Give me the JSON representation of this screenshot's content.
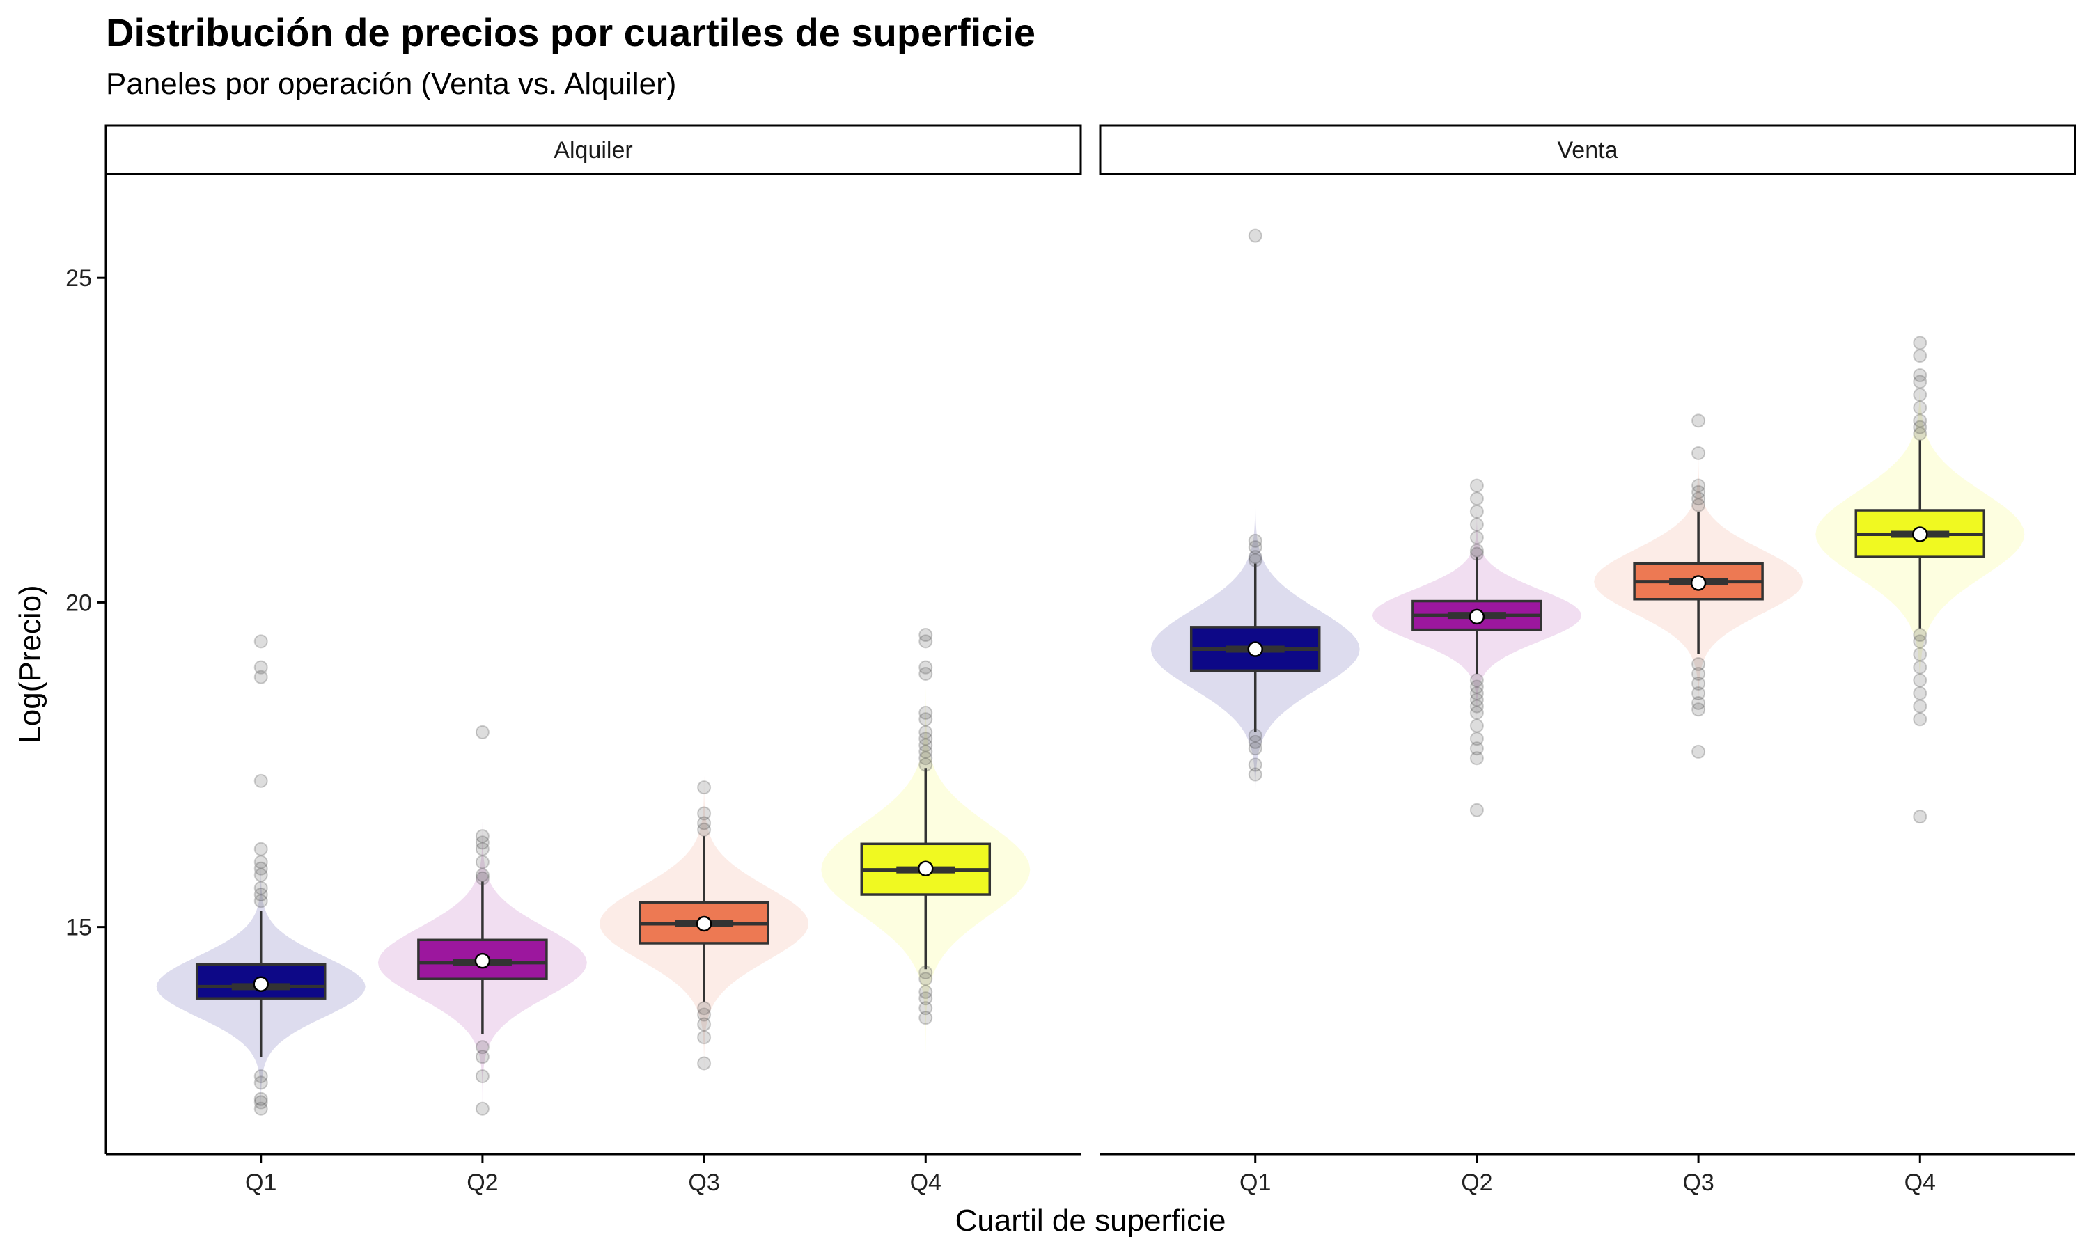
{
  "chart_data": {
    "type": "boxplot",
    "title": "Distribución de precios por cuartiles de superficie",
    "subtitle": "Paneles por operación (Venta vs. Alquiler)",
    "xlabel": "Cuartil de superficie",
    "ylabel": "Log(Precio)",
    "ylim": [
      11.5,
      26.6
    ],
    "yticks": [
      15,
      20,
      25
    ],
    "ytick_labels": [
      "15",
      "20",
      "25"
    ],
    "categories": [
      "Q1",
      "Q2",
      "Q3",
      "Q4"
    ],
    "colors": {
      "Q1": "#0d0887",
      "Q2": "#9c179e",
      "Q3": "#ed7953",
      "Q4": "#f0f921"
    },
    "grid": false,
    "legend": "none",
    "panels": [
      {
        "name": "Alquiler",
        "boxes": [
          {
            "category": "Q1",
            "q1": 13.9,
            "median": 14.08,
            "q3": 14.42,
            "whisker_low": 13.0,
            "whisker_high": 15.25,
            "mean": 14.12,
            "outliers": [
              12.2,
              12.3,
              12.35,
              12.6,
              12.7,
              15.4,
              15.5,
              15.6,
              15.8,
              15.9,
              16.0,
              16.2,
              17.25,
              18.85,
              19.0,
              19.4
            ]
          },
          {
            "category": "Q2",
            "q1": 14.2,
            "median": 14.45,
            "q3": 14.8,
            "whisker_low": 13.35,
            "whisker_high": 15.7,
            "mean": 14.48,
            "outliers": [
              12.2,
              12.7,
              13.0,
              13.15,
              15.75,
              15.8,
              16.0,
              16.2,
              16.3,
              16.4,
              18.0
            ]
          },
          {
            "category": "Q3",
            "q1": 14.75,
            "median": 15.05,
            "q3": 15.38,
            "whisker_low": 13.85,
            "whisker_high": 16.4,
            "mean": 15.05,
            "outliers": [
              12.9,
              13.3,
              13.5,
              13.65,
              13.75,
              16.5,
              16.6,
              16.75,
              17.15
            ]
          },
          {
            "category": "Q4",
            "q1": 15.5,
            "median": 15.88,
            "q3": 16.28,
            "whisker_low": 14.35,
            "whisker_high": 17.45,
            "mean": 15.9,
            "outliers": [
              13.6,
              13.75,
              13.9,
              14.0,
              14.2,
              14.3,
              17.5,
              17.6,
              17.7,
              17.8,
              17.9,
              18.0,
              18.2,
              18.3,
              18.9,
              19.0,
              19.4,
              19.5
            ]
          }
        ]
      },
      {
        "name": "Venta",
        "boxes": [
          {
            "category": "Q1",
            "q1": 18.95,
            "median": 19.28,
            "q3": 19.62,
            "whisker_low": 18.0,
            "whisker_high": 20.6,
            "mean": 19.28,
            "outliers": [
              17.35,
              17.5,
              17.75,
              17.85,
              17.95,
              20.65,
              20.7,
              20.85,
              20.95,
              25.65
            ]
          },
          {
            "category": "Q2",
            "q1": 19.58,
            "median": 19.8,
            "q3": 20.02,
            "whisker_low": 18.9,
            "whisker_high": 20.7,
            "mean": 19.78,
            "outliers": [
              16.8,
              17.6,
              17.75,
              17.9,
              18.1,
              18.3,
              18.4,
              18.5,
              18.6,
              18.7,
              18.8,
              20.75,
              20.8,
              21.0,
              21.2,
              21.4,
              21.6,
              21.8
            ]
          },
          {
            "category": "Q3",
            "q1": 20.05,
            "median": 20.32,
            "q3": 20.6,
            "whisker_low": 19.2,
            "whisker_high": 21.4,
            "mean": 20.3,
            "outliers": [
              17.7,
              18.35,
              18.45,
              18.6,
              18.75,
              18.9,
              19.05,
              21.5,
              21.6,
              21.7,
              21.8,
              22.3,
              22.8
            ]
          },
          {
            "category": "Q4",
            "q1": 20.7,
            "median": 21.05,
            "q3": 21.42,
            "whisker_low": 19.6,
            "whisker_high": 22.5,
            "mean": 21.05,
            "outliers": [
              16.7,
              18.2,
              18.4,
              18.6,
              18.8,
              19.0,
              19.2,
              19.4,
              19.5,
              22.6,
              22.7,
              22.8,
              23.0,
              23.2,
              23.4,
              23.5,
              23.8,
              24.0
            ]
          }
        ]
      }
    ]
  }
}
